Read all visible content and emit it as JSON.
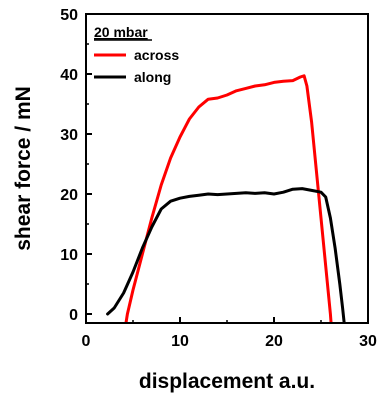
{
  "chart_data": {
    "type": "line",
    "xlabel": "displacement a.u.",
    "ylabel": "shear force / mN",
    "xlim": [
      0,
      30
    ],
    "ylim": [
      -1.5,
      50
    ],
    "x_ticks": [
      0,
      10,
      20,
      30
    ],
    "y_ticks": [
      0,
      10,
      20,
      30,
      40,
      50
    ],
    "legend": {
      "title": "20 mbar",
      "placement": "top-left"
    },
    "series": [
      {
        "name": "across",
        "color": "#ff0000",
        "points": [
          [
            4.2,
            -2.0
          ],
          [
            4.4,
            0.0
          ],
          [
            5.0,
            4.0
          ],
          [
            6.0,
            10.0
          ],
          [
            7.0,
            16.0
          ],
          [
            8.0,
            21.5
          ],
          [
            9.0,
            26.0
          ],
          [
            10.0,
            29.5
          ],
          [
            11.0,
            32.5
          ],
          [
            12.0,
            34.5
          ],
          [
            13.0,
            35.8
          ],
          [
            14.0,
            36.0
          ],
          [
            15.0,
            36.5
          ],
          [
            16.0,
            37.2
          ],
          [
            17.0,
            37.6
          ],
          [
            18.0,
            38.0
          ],
          [
            19.0,
            38.2
          ],
          [
            20.0,
            38.6
          ],
          [
            21.0,
            38.8
          ],
          [
            22.0,
            38.9
          ],
          [
            22.8,
            39.5
          ],
          [
            23.2,
            39.7
          ],
          [
            23.5,
            38.0
          ],
          [
            24.0,
            32.0
          ],
          [
            24.5,
            24.0
          ],
          [
            25.0,
            16.0
          ],
          [
            25.5,
            8.0
          ],
          [
            26.0,
            0.0
          ],
          [
            26.1,
            -2.0
          ]
        ]
      },
      {
        "name": "along",
        "color": "#000000",
        "points": [
          [
            2.3,
            0.0
          ],
          [
            3.0,
            1.0
          ],
          [
            4.0,
            3.5
          ],
          [
            5.0,
            7.0
          ],
          [
            6.0,
            11.0
          ],
          [
            7.0,
            14.5
          ],
          [
            8.0,
            17.5
          ],
          [
            9.0,
            18.8
          ],
          [
            10.0,
            19.3
          ],
          [
            11.0,
            19.6
          ],
          [
            12.0,
            19.8
          ],
          [
            13.0,
            20.0
          ],
          [
            14.0,
            19.9
          ],
          [
            15.0,
            20.0
          ],
          [
            16.0,
            20.1
          ],
          [
            17.0,
            20.2
          ],
          [
            18.0,
            20.1
          ],
          [
            19.0,
            20.2
          ],
          [
            20.0,
            20.0
          ],
          [
            21.0,
            20.3
          ],
          [
            22.0,
            20.8
          ],
          [
            23.0,
            20.9
          ],
          [
            24.0,
            20.6
          ],
          [
            25.0,
            20.3
          ],
          [
            25.5,
            19.5
          ],
          [
            26.0,
            16.0
          ],
          [
            26.5,
            11.0
          ],
          [
            27.0,
            5.0
          ],
          [
            27.3,
            1.0
          ],
          [
            27.5,
            -2.0
          ]
        ]
      }
    ]
  }
}
